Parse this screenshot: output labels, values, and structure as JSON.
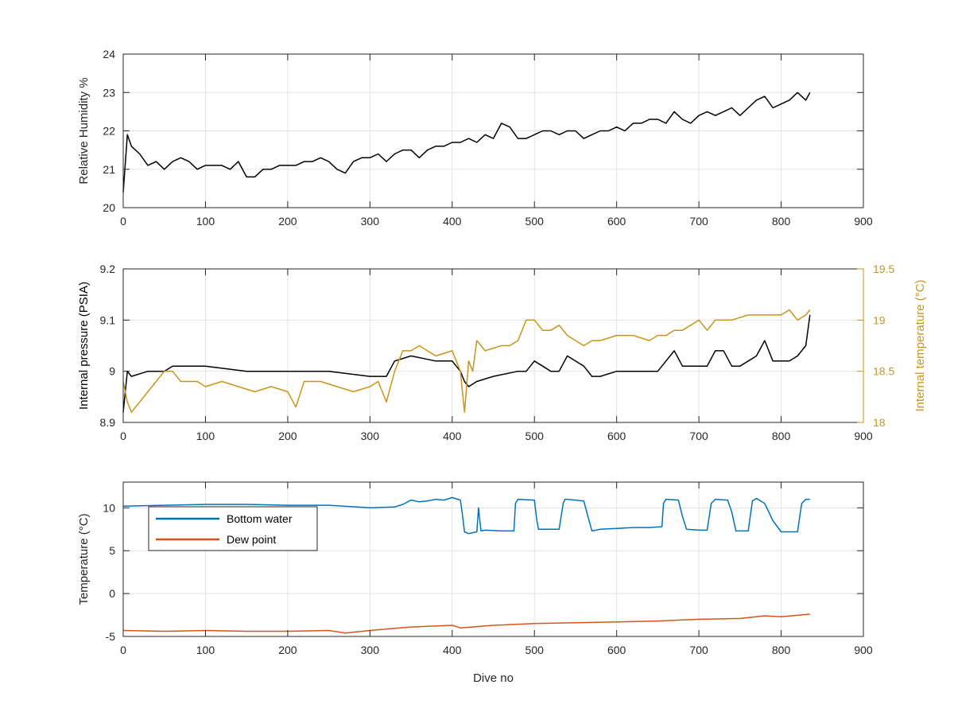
{
  "chart_data": [
    {
      "type": "line",
      "ylabel": "Relative Humidity %",
      "xlim": [
        0,
        900
      ],
      "ylim": [
        20,
        24
      ],
      "xticks": [
        "0",
        "100",
        "200",
        "300",
        "400",
        "500",
        "600",
        "700",
        "800",
        "900"
      ],
      "yticks": [
        "20",
        "21",
        "22",
        "23",
        "24"
      ],
      "grid": true,
      "series": [
        {
          "color": "#000000",
          "x": [
            0,
            5,
            10,
            20,
            30,
            40,
            50,
            60,
            70,
            80,
            90,
            100,
            110,
            120,
            130,
            140,
            150,
            160,
            170,
            180,
            190,
            200,
            210,
            220,
            230,
            240,
            250,
            260,
            270,
            280,
            290,
            300,
            310,
            320,
            330,
            340,
            350,
            360,
            370,
            380,
            390,
            400,
            410,
            420,
            430,
            440,
            450,
            460,
            470,
            480,
            490,
            500,
            510,
            520,
            530,
            540,
            550,
            560,
            570,
            580,
            590,
            600,
            610,
            620,
            630,
            640,
            650,
            660,
            670,
            680,
            690,
            700,
            710,
            720,
            730,
            740,
            750,
            760,
            770,
            780,
            790,
            800,
            810,
            820,
            830,
            835
          ],
          "y": [
            20.4,
            21.9,
            21.6,
            21.4,
            21.1,
            21.2,
            21.0,
            21.2,
            21.3,
            21.2,
            21.0,
            21.1,
            21.1,
            21.1,
            21.0,
            21.2,
            20.8,
            20.8,
            21.0,
            21.0,
            21.1,
            21.1,
            21.1,
            21.2,
            21.2,
            21.3,
            21.2,
            21.0,
            20.9,
            21.2,
            21.3,
            21.3,
            21.4,
            21.2,
            21.4,
            21.5,
            21.5,
            21.3,
            21.5,
            21.6,
            21.6,
            21.7,
            21.7,
            21.8,
            21.7,
            21.9,
            21.8,
            22.2,
            22.1,
            21.8,
            21.8,
            21.9,
            22.0,
            22.0,
            21.9,
            22.0,
            22.0,
            21.8,
            21.9,
            22.0,
            22.0,
            22.1,
            22.0,
            22.2,
            22.2,
            22.3,
            22.3,
            22.2,
            22.5,
            22.3,
            22.2,
            22.4,
            22.5,
            22.4,
            22.5,
            22.6,
            22.4,
            22.6,
            22.8,
            22.9,
            22.6,
            22.7,
            22.8,
            23.0,
            22.8,
            23.0
          ]
        }
      ]
    },
    {
      "type": "line",
      "ylabel": "Internal pressure (PSIA)",
      "y2label": "Internal temperature (°C)",
      "xlim": [
        0,
        900
      ],
      "ylim": [
        8.9,
        9.2
      ],
      "y2lim": [
        18,
        19.5
      ],
      "xticks": [
        "0",
        "100",
        "200",
        "300",
        "400",
        "500",
        "600",
        "700",
        "800",
        "900"
      ],
      "yticks": [
        "8.9",
        "9",
        "9.1",
        "9.2"
      ],
      "y2ticks": [
        "18",
        "18.5",
        "19",
        "19.5"
      ],
      "grid": true,
      "series": [
        {
          "color": "#000000",
          "axis": "left",
          "x": [
            0,
            5,
            10,
            30,
            50,
            60,
            80,
            100,
            150,
            200,
            250,
            300,
            320,
            330,
            350,
            380,
            400,
            410,
            415,
            420,
            430,
            450,
            480,
            490,
            500,
            510,
            520,
            530,
            540,
            550,
            560,
            570,
            580,
            600,
            620,
            640,
            650,
            660,
            670,
            680,
            690,
            700,
            710,
            720,
            730,
            740,
            750,
            760,
            770,
            780,
            790,
            800,
            810,
            820,
            825,
            830,
            835
          ],
          "y": [
            8.92,
            9.0,
            8.99,
            9.0,
            9.0,
            9.01,
            9.01,
            9.01,
            9.0,
            9.0,
            9.0,
            8.99,
            8.99,
            9.02,
            9.03,
            9.02,
            9.02,
            9.0,
            8.98,
            8.97,
            8.98,
            8.99,
            9.0,
            9.0,
            9.02,
            9.01,
            9.0,
            9.0,
            9.03,
            9.02,
            9.01,
            8.99,
            8.99,
            9.0,
            9.0,
            9.0,
            9.0,
            9.02,
            9.04,
            9.01,
            9.01,
            9.01,
            9.01,
            9.04,
            9.04,
            9.01,
            9.01,
            9.02,
            9.03,
            9.06,
            9.02,
            9.02,
            9.02,
            9.03,
            9.04,
            9.05,
            9.11
          ]
        },
        {
          "color": "#C8951A",
          "axis": "right",
          "x": [
            0,
            5,
            10,
            20,
            30,
            40,
            50,
            60,
            70,
            80,
            90,
            100,
            120,
            140,
            160,
            180,
            200,
            210,
            220,
            240,
            260,
            280,
            300,
            310,
            320,
            330,
            340,
            350,
            360,
            380,
            400,
            410,
            415,
            420,
            425,
            430,
            440,
            460,
            470,
            480,
            490,
            500,
            510,
            520,
            530,
            540,
            550,
            560,
            570,
            580,
            600,
            620,
            640,
            650,
            660,
            670,
            680,
            690,
            700,
            710,
            720,
            740,
            760,
            780,
            800,
            810,
            820,
            830,
            835
          ],
          "y": [
            18.4,
            18.2,
            18.1,
            18.2,
            18.3,
            18.4,
            18.5,
            18.5,
            18.4,
            18.4,
            18.4,
            18.35,
            18.4,
            18.35,
            18.3,
            18.35,
            18.3,
            18.15,
            18.4,
            18.4,
            18.35,
            18.3,
            18.35,
            18.4,
            18.2,
            18.5,
            18.7,
            18.7,
            18.75,
            18.65,
            18.7,
            18.5,
            18.1,
            18.6,
            18.5,
            18.8,
            18.7,
            18.75,
            18.75,
            18.8,
            19.0,
            19.0,
            18.9,
            18.9,
            18.95,
            18.85,
            18.8,
            18.75,
            18.8,
            18.8,
            18.85,
            18.85,
            18.8,
            18.85,
            18.85,
            18.9,
            18.9,
            18.95,
            19.0,
            18.9,
            19.0,
            19.0,
            19.05,
            19.05,
            19.05,
            19.1,
            19.0,
            19.05,
            19.1
          ]
        }
      ]
    },
    {
      "type": "line",
      "xlabel": "Dive no",
      "ylabel": "Temperature (°C)",
      "xlim": [
        0,
        900
      ],
      "ylim": [
        -5,
        13
      ],
      "xticks": [
        "0",
        "100",
        "200",
        "300",
        "400",
        "500",
        "600",
        "700",
        "800",
        "900"
      ],
      "yticks": [
        "-5",
        "0",
        "5",
        "10"
      ],
      "grid": true,
      "legend": {
        "placement": "top-left"
      },
      "series": [
        {
          "name": "Bottom water",
          "color": "#0072BD",
          "x": [
            0,
            50,
            100,
            150,
            200,
            250,
            300,
            330,
            340,
            350,
            360,
            370,
            380,
            390,
            400,
            410,
            412,
            415,
            420,
            425,
            430,
            432,
            435,
            440,
            460,
            475,
            477,
            480,
            500,
            503,
            505,
            510,
            530,
            535,
            537,
            540,
            560,
            565,
            570,
            580,
            600,
            620,
            640,
            655,
            657,
            660,
            675,
            680,
            685,
            700,
            710,
            715,
            720,
            735,
            740,
            745,
            760,
            765,
            770,
            780,
            790,
            800,
            820,
            825,
            830,
            835
          ],
          "y": [
            10.2,
            10.3,
            10.4,
            10.4,
            10.3,
            10.3,
            10.0,
            10.1,
            10.4,
            10.9,
            10.7,
            10.8,
            11.0,
            10.9,
            11.2,
            10.9,
            9.5,
            7.2,
            7.0,
            7.1,
            7.2,
            10.0,
            7.3,
            7.4,
            7.3,
            7.3,
            10.5,
            11.0,
            10.9,
            8.5,
            7.5,
            7.5,
            7.5,
            10.5,
            11.0,
            11.0,
            10.8,
            9.0,
            7.3,
            7.5,
            7.6,
            7.7,
            7.7,
            7.8,
            10.5,
            11.0,
            10.9,
            9.0,
            7.5,
            7.4,
            7.4,
            10.5,
            11.0,
            10.9,
            9.5,
            7.3,
            7.3,
            10.8,
            11.1,
            10.5,
            8.5,
            7.2,
            7.2,
            10.5,
            11.0,
            11.0
          ]
        },
        {
          "name": "Dew point",
          "color": "#D95319",
          "x": [
            0,
            50,
            100,
            150,
            200,
            250,
            270,
            300,
            350,
            400,
            410,
            450,
            500,
            550,
            600,
            650,
            700,
            750,
            780,
            800,
            835
          ],
          "y": [
            -4.3,
            -4.4,
            -4.3,
            -4.4,
            -4.4,
            -4.3,
            -4.6,
            -4.3,
            -3.9,
            -3.7,
            -4.0,
            -3.7,
            -3.5,
            -3.4,
            -3.3,
            -3.2,
            -3.0,
            -2.9,
            -2.6,
            -2.7,
            -2.4
          ]
        }
      ]
    }
  ]
}
